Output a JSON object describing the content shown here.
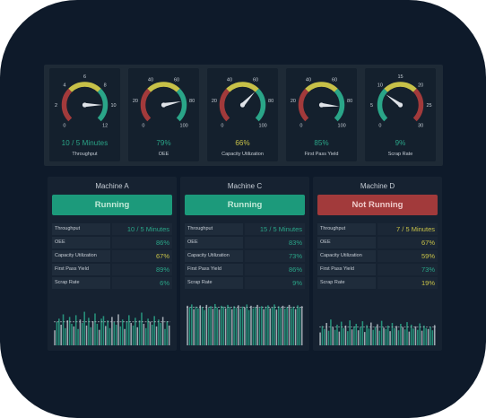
{
  "colors": {
    "green": "#2aa588",
    "yellow": "#c7c148",
    "red": "#a23a3b",
    "frame": "#0e1a2a"
  },
  "gauges": [
    {
      "label": "Throughput",
      "value_text": "10 / 5 Minutes",
      "value": 10,
      "min": 0,
      "max": 12,
      "ticks": [
        "0",
        "2",
        "4",
        "6",
        "8",
        "10",
        "12"
      ],
      "value_color": "#2aa588",
      "bands": [
        "red",
        "yellow",
        "green"
      ]
    },
    {
      "label": "OEE",
      "value_text": "79%",
      "value": 79,
      "min": 0,
      "max": 100,
      "ticks": [
        "0",
        "20",
        "40",
        "60",
        "80",
        "100"
      ],
      "value_color": "#2aa588",
      "bands": [
        "red",
        "yellow",
        "green"
      ]
    },
    {
      "label": "Capacity Utilization",
      "value_text": "66%",
      "value": 66,
      "min": 0,
      "max": 100,
      "ticks": [
        "0",
        "20",
        "40",
        "60",
        "80",
        "100"
      ],
      "value_color": "#c7c148",
      "bands": [
        "red",
        "yellow",
        "green"
      ]
    },
    {
      "label": "First Pass Yield",
      "value_text": "85%",
      "value": 85,
      "min": 0,
      "max": 100,
      "ticks": [
        "0",
        "20",
        "40",
        "60",
        "80",
        "100"
      ],
      "value_color": "#2aa588",
      "bands": [
        "red",
        "yellow",
        "green"
      ]
    },
    {
      "label": "Scrap Rate",
      "value_text": "9%",
      "value": 9,
      "min": 0,
      "max": 30,
      "ticks": [
        "0",
        "5",
        "10",
        "15",
        "20",
        "25",
        "30"
      ],
      "value_color": "#2aa588",
      "bands": [
        "green",
        "yellow",
        "red"
      ]
    }
  ],
  "machines": [
    {
      "name": "Machine A",
      "status": "Running",
      "state": "running",
      "metrics": [
        {
          "name": "Throughput",
          "value": "10 / 5 Minutes",
          "color": "#2aa588"
        },
        {
          "name": "OEE",
          "value": "86%",
          "color": "#2aa588"
        },
        {
          "name": "Capacity Utilization",
          "value": "67%",
          "color": "#c7c148"
        },
        {
          "name": "First Pass Yield",
          "value": "89%",
          "color": "#2aa588"
        },
        {
          "name": "Scrap Rate",
          "value": "6%",
          "color": "#2aa588"
        }
      ],
      "bars": [
        0.35,
        0.55,
        0.62,
        0.48,
        0.72,
        0.4,
        0.58,
        0.66,
        0.5,
        0.44,
        0.7,
        0.38,
        0.6,
        0.52,
        0.78,
        0.46,
        0.64,
        0.42,
        0.56,
        0.74,
        0.5,
        0.36,
        0.62,
        0.68,
        0.45,
        0.58,
        0.4,
        0.66,
        0.54,
        0.48,
        0.72,
        0.44,
        0.6,
        0.38,
        0.56,
        0.7,
        0.52,
        0.46,
        0.64,
        0.42,
        0.58,
        0.76,
        0.5,
        0.4,
        0.62,
        0.55,
        0.48,
        0.68,
        0.44,
        0.6,
        0.52,
        0.66,
        0.38,
        0.56,
        0.46
      ],
      "bar_colors": [
        "green",
        "gray"
      ]
    },
    {
      "name": "Machine C",
      "status": "Running",
      "state": "running",
      "metrics": [
        {
          "name": "Throughput",
          "value": "15 / 5 Minutes",
          "color": "#2aa588"
        },
        {
          "name": "OEE",
          "value": "83%",
          "color": "#2aa588"
        },
        {
          "name": "Capacity Utilization",
          "value": "73%",
          "color": "#2aa588"
        },
        {
          "name": "First Pass Yield",
          "value": "86%",
          "color": "#2aa588"
        },
        {
          "name": "Scrap Rate",
          "value": "9%",
          "color": "#2aa588"
        }
      ],
      "bars": [
        0.92,
        0.88,
        0.95,
        0.84,
        0.9,
        0.86,
        0.93,
        0.89,
        0.82,
        0.94,
        0.87,
        0.91,
        0.85,
        0.96,
        0.88,
        0.83,
        0.92,
        0.9,
        0.86,
        0.94,
        0.89,
        0.84,
        0.91,
        0.87,
        0.93,
        0.85,
        0.9,
        0.88,
        0.95,
        0.82,
        0.92,
        0.86,
        0.89,
        0.94,
        0.87,
        0.91,
        0.84,
        0.9,
        0.93,
        0.86,
        0.88,
        0.95,
        0.83,
        0.91,
        0.87,
        0.92,
        0.85,
        0.89,
        0.94,
        0.86,
        0.9,
        0.84,
        0.93,
        0.88,
        0.91
      ],
      "bar_colors": [
        "green",
        "gray"
      ]
    },
    {
      "name": "Machine D",
      "status": "Not Running",
      "state": "stopped",
      "metrics": [
        {
          "name": "Throughput",
          "value": "7 / 5 Minutes",
          "color": "#c7c148"
        },
        {
          "name": "OEE",
          "value": "67%",
          "color": "#c7c148"
        },
        {
          "name": "Capacity Utilization",
          "value": "59%",
          "color": "#c7c148"
        },
        {
          "name": "First Pass Yield",
          "value": "73%",
          "color": "#2aa588"
        },
        {
          "name": "Scrap Rate",
          "value": "19%",
          "color": "#c7c148"
        }
      ],
      "bars": [
        0.3,
        0.45,
        0.38,
        0.52,
        0.34,
        0.6,
        0.42,
        0.36,
        0.48,
        0.32,
        0.55,
        0.4,
        0.46,
        0.33,
        0.58,
        0.37,
        0.44,
        0.5,
        0.35,
        0.42,
        0.56,
        0.31,
        0.47,
        0.39,
        0.53,
        0.36,
        0.43,
        0.49,
        0.34,
        0.57,
        0.41,
        0.38,
        0.46,
        0.33,
        0.52,
        0.4,
        0.45,
        0.35,
        0.5,
        0.42,
        0.37,
        0.54,
        0.32,
        0.48,
        0.39,
        0.44,
        0.36,
        0.51,
        0.34,
        0.46,
        0.4,
        0.38,
        0.43,
        0.35,
        0.47
      ],
      "bar_colors": [
        "green",
        "gray"
      ]
    }
  ]
}
